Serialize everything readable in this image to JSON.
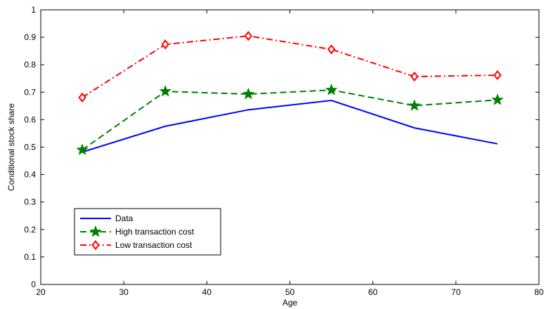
{
  "chart_data": {
    "type": "line",
    "title": "",
    "xlabel": "Age",
    "ylabel": "Conditional stock share",
    "xlim": [
      20,
      80
    ],
    "ylim": [
      0,
      1
    ],
    "xticks": [
      20,
      30,
      40,
      50,
      60,
      70,
      80
    ],
    "yticks": [
      0,
      0.1,
      0.2,
      0.3,
      0.4,
      0.5,
      0.6,
      0.7,
      0.8,
      0.9,
      1
    ],
    "grid": false,
    "legend_position": "lower-left",
    "series": [
      {
        "name": "Data",
        "color": "#0000ff",
        "line_style": "solid",
        "marker": "none",
        "x": [
          25,
          35,
          45,
          55,
          65,
          75
        ],
        "y": [
          0.482,
          0.576,
          0.636,
          0.67,
          0.57,
          0.512
        ]
      },
      {
        "name": "High transaction cost",
        "color": "#008000",
        "line_style": "dashed",
        "marker": "star",
        "x": [
          25,
          35,
          45,
          55,
          65,
          75
        ],
        "y": [
          0.49,
          0.703,
          0.693,
          0.708,
          0.651,
          0.672
        ]
      },
      {
        "name": "Low transaction cost",
        "color": "#ff0000",
        "line_style": "dash-dot",
        "marker": "diamond",
        "x": [
          25,
          35,
          45,
          55,
          65,
          75
        ],
        "y": [
          0.681,
          0.874,
          0.905,
          0.856,
          0.757,
          0.762
        ]
      }
    ]
  }
}
